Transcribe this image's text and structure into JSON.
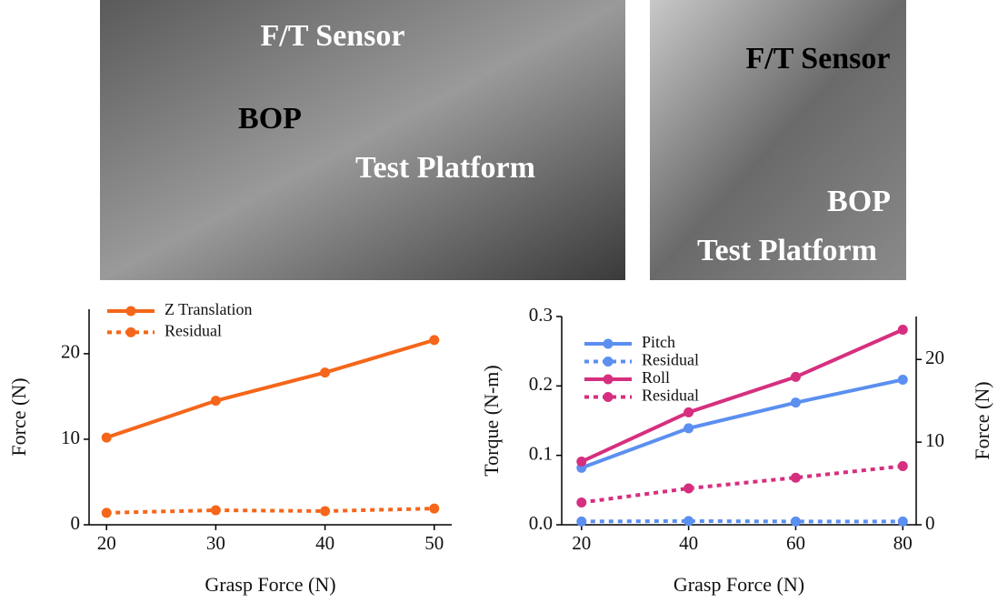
{
  "photos": [
    {
      "labels": [
        "F/T Sensor",
        "BOP",
        "Test Platform"
      ]
    },
    {
      "labels": [
        "F/T Sensor",
        "BOP",
        "Test Platform"
      ]
    }
  ],
  "chart_data": [
    {
      "type": "line",
      "xlabel": "Grasp Force (N)",
      "ylabel": "Force (N)",
      "x": [
        20,
        30,
        40,
        50
      ],
      "xlim": [
        18.4,
        51.6
      ],
      "xticks": [
        20,
        30,
        40,
        50
      ],
      "ylim": [
        0,
        25.2
      ],
      "yticks": [
        0,
        10,
        20
      ],
      "legend": "upper left",
      "series": [
        {
          "name": "Z Translation",
          "color": "#f5661a",
          "linestyle": "solid",
          "values": [
            10.2,
            14.5,
            17.8,
            21.6
          ]
        },
        {
          "name": "Residual",
          "color": "#f5661a",
          "linestyle": "dotted",
          "values": [
            1.4,
            1.7,
            1.6,
            1.9
          ]
        }
      ]
    },
    {
      "type": "line",
      "xlabel": "Grasp Force (N)",
      "ylabel": "Torque (N-m)",
      "y2label": "Force (N)",
      "x": [
        20,
        40,
        60,
        80
      ],
      "xlim": [
        16.3,
        82.5
      ],
      "xticks": [
        20,
        40,
        60,
        80
      ],
      "ylim": [
        0,
        0.3
      ],
      "yticks": [
        {
          "value": 0,
          "label": "0.0"
        },
        0.1,
        0.2,
        0.3
      ],
      "y2lim": [
        0,
        25.2
      ],
      "y2ticks": [
        0,
        10,
        20
      ],
      "legend": "upper left",
      "series": [
        {
          "name": "Pitch",
          "color": "#5b8ff0",
          "linestyle": "solid",
          "values": [
            0.082,
            0.139,
            0.176,
            0.209
          ]
        },
        {
          "name": "Residual",
          "color": "#5b8ff0",
          "linestyle": "dotted",
          "axis": "y2",
          "values": [
            0.4,
            0.45,
            0.4,
            0.4
          ]
        },
        {
          "name": "Roll",
          "color": "#d62f7f",
          "linestyle": "solid",
          "values": [
            0.091,
            0.162,
            0.213,
            0.281
          ]
        },
        {
          "name": "Residual",
          "color": "#d62f7f",
          "linestyle": "dotted",
          "axis": "y2",
          "values": [
            2.7,
            4.4,
            5.7,
            7.1
          ]
        }
      ]
    }
  ]
}
